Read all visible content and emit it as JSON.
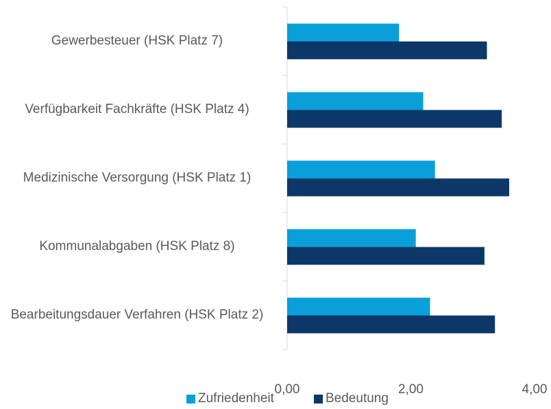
{
  "chart_data": {
    "type": "bar",
    "orientation": "horizontal",
    "categories": [
      "Gewerbesteuer (HSK Platz 7)",
      "Verfügbarkeit Fachkräfte (HSK Platz 4)",
      "Medizinische Versorgung (HSK Platz 1)",
      "Kommunalabgaben (HSK Platz 8)",
      "Bearbeitungsdauer Verfahren (HSK Platz 2)"
    ],
    "series": [
      {
        "name": "Zufriedenheit",
        "color": "#0a9fd8",
        "values": [
          1.81,
          2.2,
          2.39,
          2.08,
          2.31
        ]
      },
      {
        "name": "Bedeutung",
        "color": "#0d3767",
        "values": [
          3.23,
          3.47,
          3.59,
          3.19,
          3.36
        ]
      }
    ],
    "xlim": [
      0,
      4
    ],
    "xticks": [
      {
        "value": 0,
        "label": "0,00"
      },
      {
        "value": 2,
        "label": "2,00"
      },
      {
        "value": 4,
        "label": "4,00"
      }
    ],
    "legend": "bottom"
  }
}
